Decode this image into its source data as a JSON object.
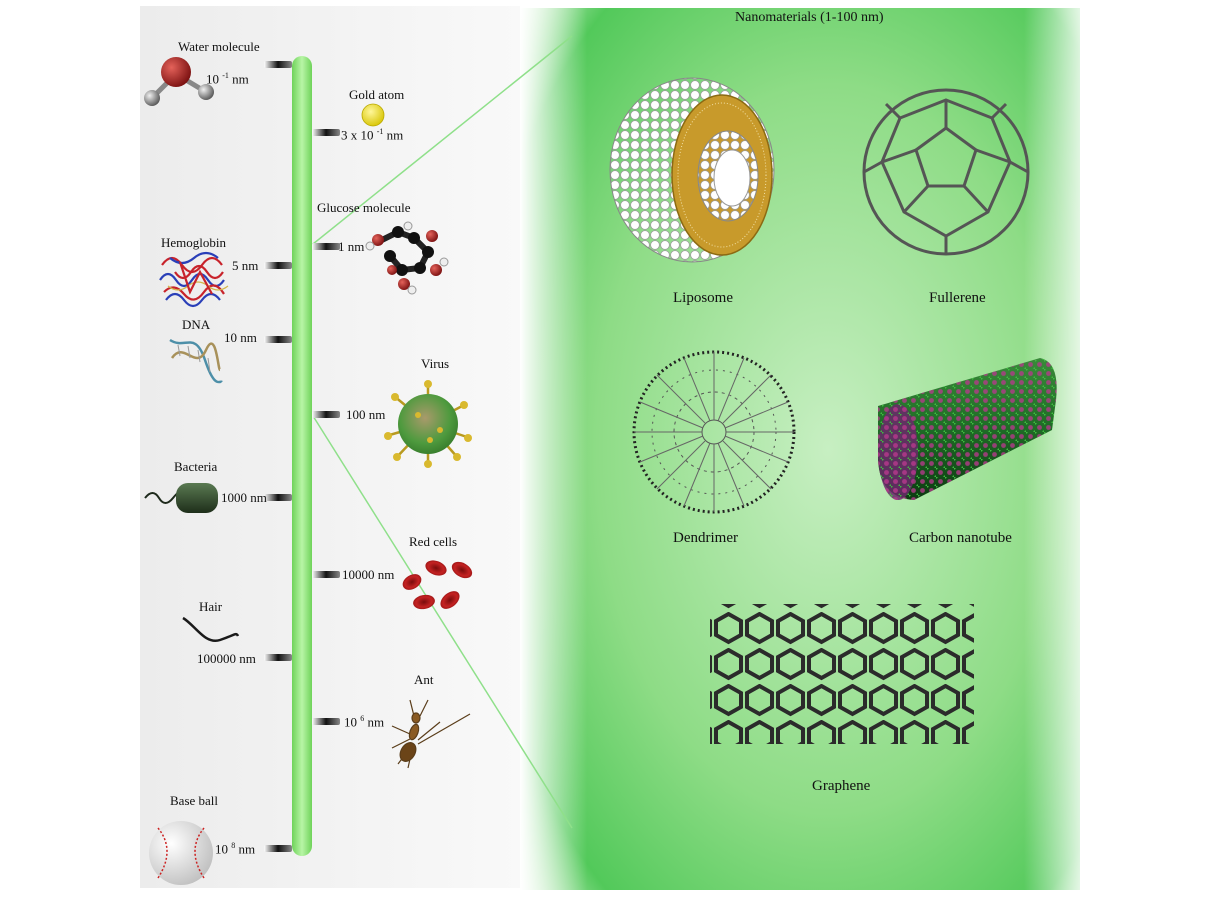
{
  "title": "Nanomaterials (1-100 nm)",
  "scale_left": [
    {
      "name": "Water molecule",
      "value_base": "10",
      "value_exp": "-1",
      "unit": "nm"
    },
    {
      "name": "Hemoglobin",
      "value": "5 nm"
    },
    {
      "name": "DNA",
      "value": "10 nm"
    },
    {
      "name": "Bacteria",
      "value": "1000 nm"
    },
    {
      "name": "Hair",
      "value": "100000 nm"
    },
    {
      "name": "Base ball",
      "value_base": "10",
      "value_exp": "8",
      "unit": "nm"
    }
  ],
  "scale_right": [
    {
      "name": "Gold atom",
      "value_base": "3 x 10",
      "value_exp": "-1",
      "unit": "nm"
    },
    {
      "name": "Glucose molecule",
      "value": "1 nm"
    },
    {
      "name": "Virus",
      "value": "100 nm"
    },
    {
      "name": "Red cells",
      "value": "10000 nm"
    },
    {
      "name": "Ant",
      "value_base": "10",
      "value_exp": "6",
      "unit": "nm"
    }
  ],
  "nanomaterials": [
    {
      "name": "Liposome"
    },
    {
      "name": "Fullerene"
    },
    {
      "name": "Dendrimer"
    },
    {
      "name": "Carbon nanotube"
    },
    {
      "name": "Graphene"
    }
  ],
  "colors": {
    "scale_bar": "#8de07a",
    "panel": "#5fcf63",
    "liposome_tail": "#c89a2b",
    "hemoglobin_red": "#c8232b",
    "hemoglobin_blue": "#2a3fb8"
  }
}
